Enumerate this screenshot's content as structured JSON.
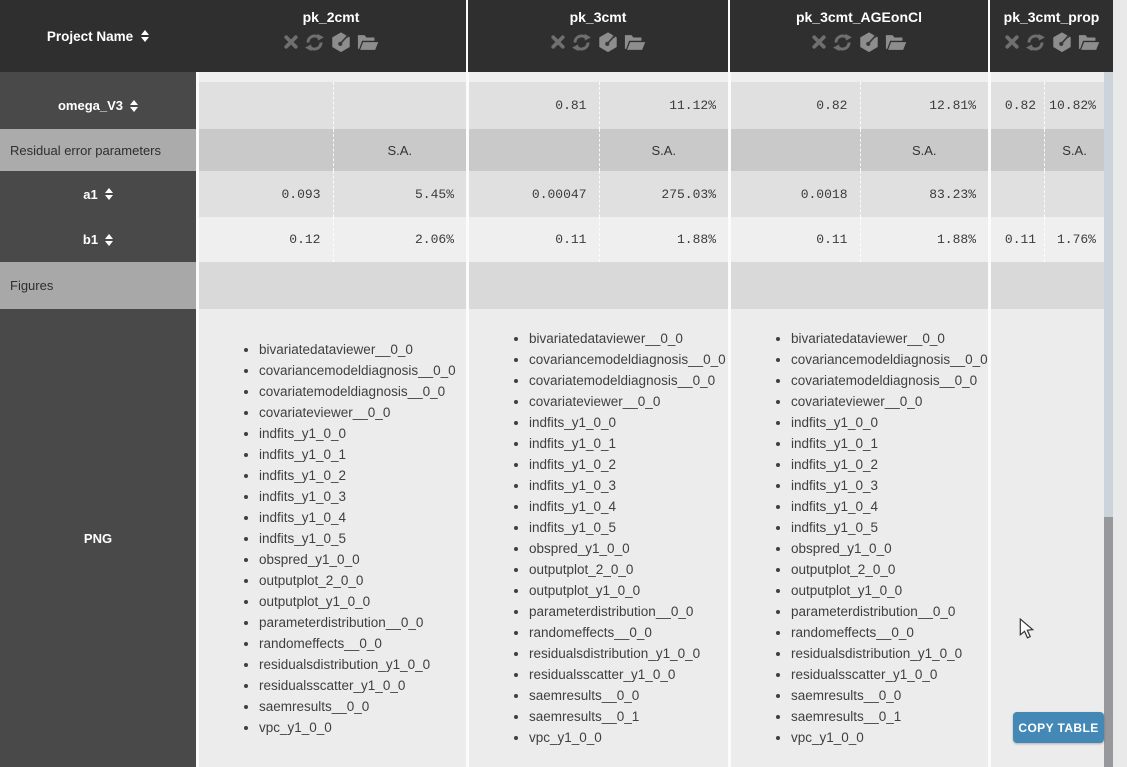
{
  "header": {
    "label_column_title": "Project Name",
    "projects": [
      {
        "name": "pk_2cmt"
      },
      {
        "name": "pk_3cmt"
      },
      {
        "name": "pk_3cmt_AGEonCl"
      },
      {
        "name": "pk_3cmt_prop"
      }
    ],
    "project_action_icons": [
      "close",
      "reload",
      "load-model",
      "open-results-folder"
    ]
  },
  "rows": {
    "omega_v3": {
      "label": "omega_V3",
      "cells": [
        {
          "value": "",
          "rse": ""
        },
        {
          "value": "0.81",
          "rse": "11.12%"
        },
        {
          "value": "0.82",
          "rse": "12.81%"
        },
        {
          "value": "0.82",
          "rse": "10.82%"
        }
      ]
    },
    "residual_section": {
      "label": "Residual error parameters",
      "cells": [
        {
          "method": "S.A."
        },
        {
          "method": "S.A."
        },
        {
          "method": "S.A."
        },
        {
          "method": "S.A."
        }
      ]
    },
    "a1": {
      "label": "a1",
      "cells": [
        {
          "value": "0.093",
          "rse": "5.45%"
        },
        {
          "value": "0.00047",
          "rse": "275.03%"
        },
        {
          "value": "0.0018",
          "rse": "83.23%"
        },
        {
          "value": "",
          "rse": ""
        }
      ]
    },
    "b1": {
      "label": "b1",
      "cells": [
        {
          "value": "0.12",
          "rse": "2.06%"
        },
        {
          "value": "0.11",
          "rse": "1.88%"
        },
        {
          "value": "0.11",
          "rse": "1.88%"
        },
        {
          "value": "0.11",
          "rse": "1.76%"
        }
      ]
    },
    "figures_section": {
      "label": "Figures"
    },
    "png": {
      "label": "PNG",
      "figure_lists": [
        [
          "bivariatedataviewer__0_0",
          "covariancemodeldiagnosis__0_0",
          "covariatemodeldiagnosis__0_0",
          "covariateviewer__0_0",
          "indfits_y1_0_0",
          "indfits_y1_0_1",
          "indfits_y1_0_2",
          "indfits_y1_0_3",
          "indfits_y1_0_4",
          "indfits_y1_0_5",
          "obspred_y1_0_0",
          "outputplot_2_0_0",
          "outputplot_y1_0_0",
          "parameterdistribution__0_0",
          "randomeffects__0_0",
          "residualsdistribution_y1_0_0",
          "residualsscatter_y1_0_0",
          "saemresults__0_0",
          "vpc_y1_0_0"
        ],
        [
          "bivariatedataviewer__0_0",
          "covariancemodeldiagnosis__0_0",
          "covariatemodeldiagnosis__0_0",
          "covariateviewer__0_0",
          "indfits_y1_0_0",
          "indfits_y1_0_1",
          "indfits_y1_0_2",
          "indfits_y1_0_3",
          "indfits_y1_0_4",
          "indfits_y1_0_5",
          "obspred_y1_0_0",
          "outputplot_2_0_0",
          "outputplot_y1_0_0",
          "parameterdistribution__0_0",
          "randomeffects__0_0",
          "residualsdistribution_y1_0_0",
          "residualsscatter_y1_0_0",
          "saemresults__0_0",
          "saemresults__0_1",
          "vpc_y1_0_0"
        ],
        [
          "bivariatedataviewer__0_0",
          "covariancemodeldiagnosis__0_0",
          "covariatemodeldiagnosis__0_0",
          "covariateviewer__0_0",
          "indfits_y1_0_0",
          "indfits_y1_0_1",
          "indfits_y1_0_2",
          "indfits_y1_0_3",
          "indfits_y1_0_4",
          "indfits_y1_0_5",
          "obspred_y1_0_0",
          "outputplot_2_0_0",
          "outputplot_y1_0_0",
          "parameterdistribution__0_0",
          "randomeffects__0_0",
          "residualsdistribution_y1_0_0",
          "residualsscatter_y1_0_0",
          "saemresults__0_0",
          "saemresults__0_1",
          "vpc_y1_0_0"
        ],
        []
      ]
    }
  },
  "actions": {
    "copy_table_label": "COPY TABLE"
  },
  "colors": {
    "header_bg": "#2f2f2f",
    "row_label_bg": "#494949",
    "section_bg": "#ababab",
    "copy_button": "#4489b5",
    "scroll_thumb": "#97989b"
  }
}
